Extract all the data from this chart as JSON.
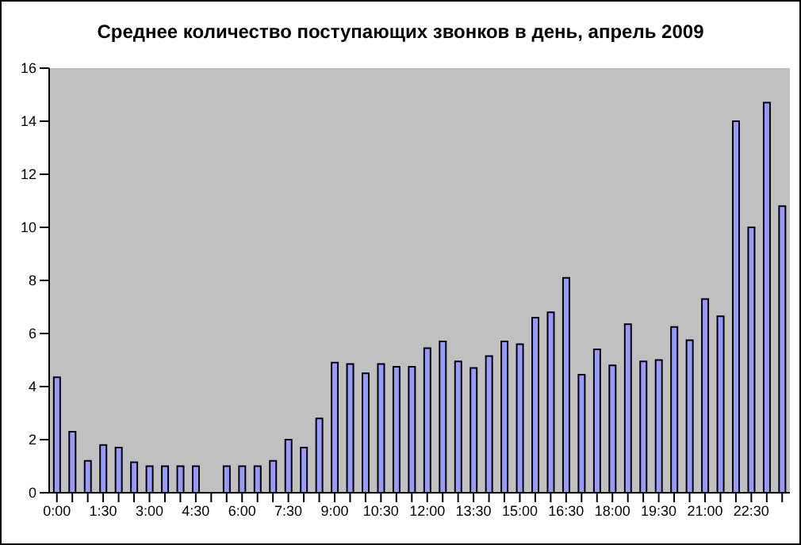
{
  "chart_data": {
    "type": "bar",
    "title": "Среднее количество поступающих звонков в день, апрель 2009",
    "categories": [
      "0:00",
      null,
      null,
      "1:30",
      null,
      null,
      "3:00",
      null,
      null,
      "4:30",
      null,
      null,
      "6:00",
      null,
      null,
      "7:30",
      null,
      null,
      "9:00",
      null,
      null,
      "10:30",
      null,
      null,
      "12:00",
      null,
      null,
      "13:30",
      null,
      null,
      "15:00",
      null,
      null,
      "16:30",
      null,
      null,
      "18:00",
      null,
      null,
      "19:30",
      null,
      null,
      "21:00",
      null,
      null,
      "22:30",
      null,
      null
    ],
    "values": [
      4.35,
      2.3,
      1.2,
      1.8,
      1.7,
      1.15,
      1.0,
      1.0,
      1.0,
      1.0,
      null,
      1.0,
      1.0,
      1.0,
      1.2,
      2.0,
      1.7,
      2.8,
      4.9,
      4.85,
      4.5,
      4.85,
      4.75,
      4.75,
      5.45,
      5.7,
      4.95,
      4.7,
      5.15,
      5.7,
      5.6,
      6.6,
      6.8,
      8.1,
      4.45,
      5.4,
      4.8,
      6.35,
      4.95,
      5.0,
      6.25,
      5.75,
      7.3,
      6.65,
      14.0,
      10.0,
      14.7,
      10.8
    ],
    "color": "#9999ff",
    "ylim": [
      0,
      16
    ],
    "yticks": [
      0,
      2,
      4,
      6,
      8,
      10,
      12,
      14,
      16
    ],
    "grid": false,
    "legend": false
  }
}
